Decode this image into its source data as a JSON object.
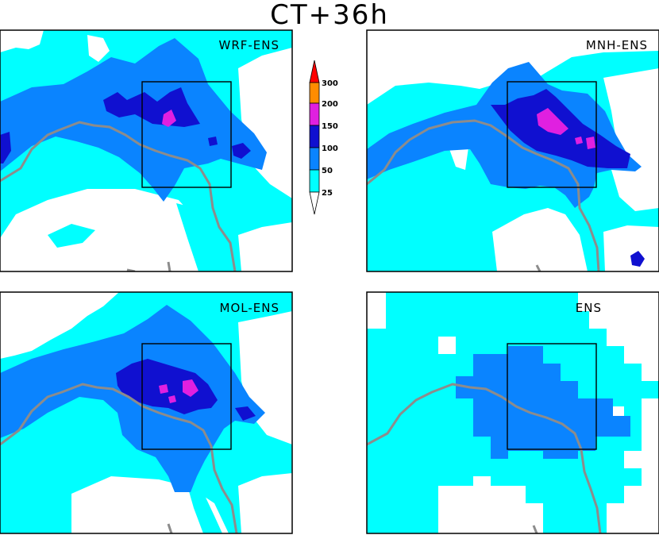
{
  "title": "CT+36h",
  "colors": {
    "white": "#ffffff",
    "cyan": "#00ffff",
    "blue50": "#0a84ff",
    "blue100": "#1010d0",
    "magenta": "#e020e0",
    "orange": "#ff8c00",
    "red": "#ff0000",
    "border": "#8c8c8c",
    "box": "#000000"
  },
  "colorbar": {
    "thresholds": [
      "25",
      "50",
      "100",
      "150",
      "200",
      "300"
    ]
  },
  "panels": [
    {
      "id": "wrf",
      "label": "WRF-ENS",
      "blocky": false
    },
    {
      "id": "mnh",
      "label": "MNH-ENS",
      "blocky": false
    },
    {
      "id": "mol",
      "label": "MOL-ENS",
      "blocky": false
    },
    {
      "id": "ens",
      "label": "ENS",
      "blocky": true
    }
  ]
}
